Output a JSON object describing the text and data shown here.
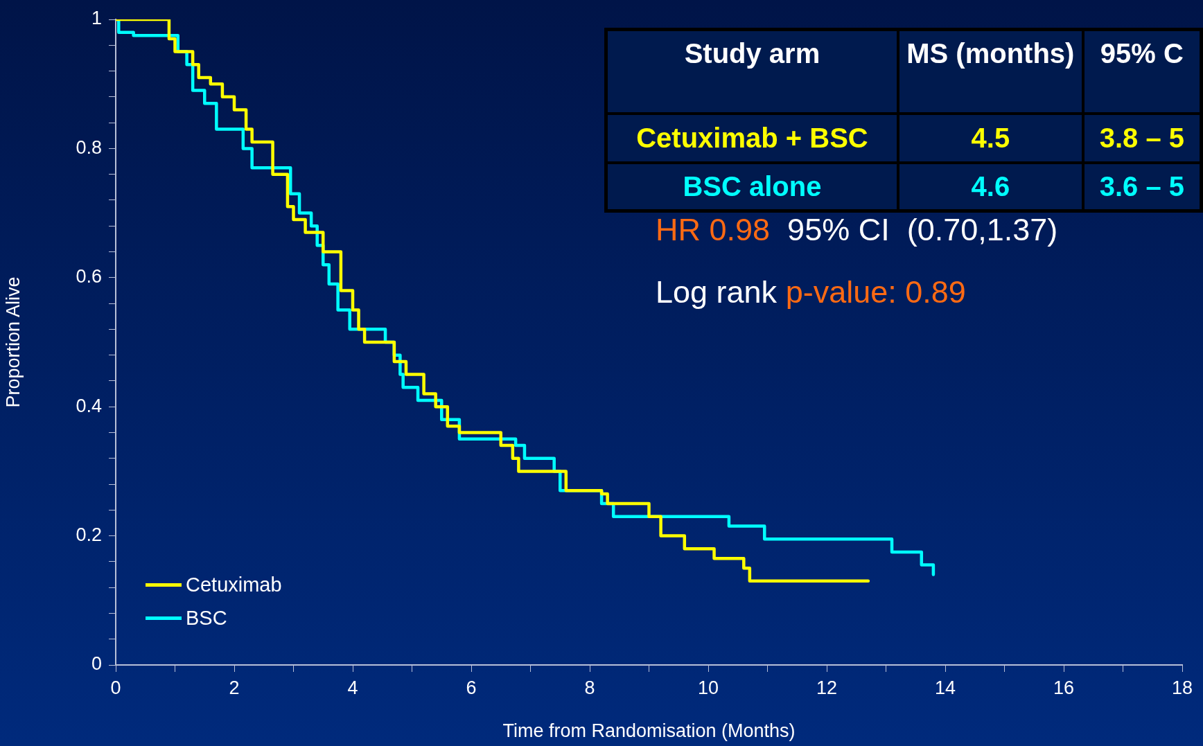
{
  "chart_data": {
    "type": "step",
    "xlabel": "Time from Randomisation (Months)",
    "ylabel": "Proportion Alive",
    "xlim": [
      0,
      18
    ],
    "xticks": [
      0,
      {
        "value": 1,
        "label": null
      },
      2,
      {
        "value": 3,
        "label": null
      },
      4,
      {
        "value": 5,
        "label": null
      },
      6,
      {
        "value": 7,
        "label": null
      },
      8,
      {
        "value": 9,
        "label": null
      },
      10,
      {
        "value": 11,
        "label": null
      },
      12,
      {
        "value": 13,
        "label": null
      },
      14,
      {
        "value": 15,
        "label": null
      },
      16,
      {
        "value": 17,
        "label": null
      },
      18
    ],
    "ylim": [
      0,
      1
    ],
    "yticks": [
      0,
      {
        "value": 0.04,
        "label": null
      },
      {
        "value": 0.08,
        "label": null
      },
      {
        "value": 0.12,
        "label": null
      },
      {
        "value": 0.16,
        "label": null
      },
      0.2,
      {
        "value": 0.24,
        "label": null
      },
      {
        "value": 0.28,
        "label": null
      },
      {
        "value": 0.32,
        "label": null
      },
      {
        "value": 0.36,
        "label": null
      },
      0.4,
      {
        "value": 0.44,
        "label": null
      },
      {
        "value": 0.48,
        "label": null
      },
      {
        "value": 0.52,
        "label": null
      },
      {
        "value": 0.56,
        "label": null
      },
      0.6,
      {
        "value": 0.64,
        "label": null
      },
      {
        "value": 0.68,
        "label": null
      },
      {
        "value": 0.72,
        "label": null
      },
      {
        "value": 0.76,
        "label": null
      },
      0.8,
      {
        "value": 0.84,
        "label": null
      },
      {
        "value": 0.88,
        "label": null
      },
      {
        "value": 0.92,
        "label": null
      },
      {
        "value": 0.96,
        "label": null
      },
      1
    ],
    "grid": false,
    "legend": "bottom left",
    "marker": "none",
    "line_style": "solid",
    "series": [
      {
        "name": "Cetuximab",
        "color": "#ffff00",
        "x": [
          0,
          0.9,
          1.0,
          1.3,
          1.4,
          1.6,
          1.8,
          2.0,
          2.2,
          2.3,
          2.65,
          2.9,
          3.0,
          3.2,
          3.5,
          3.8,
          4.0,
          4.1,
          4.2,
          4.7,
          4.9,
          5.2,
          5.4,
          5.6,
          5.8,
          6.5,
          6.7,
          6.8,
          7.6,
          8.2,
          8.3,
          9.0,
          9.2,
          9.6,
          10.1,
          10.6,
          10.7,
          12.7
        ],
        "values": [
          1,
          0.97,
          0.95,
          0.93,
          0.91,
          0.9,
          0.88,
          0.86,
          0.83,
          0.81,
          0.76,
          0.71,
          0.69,
          0.67,
          0.64,
          0.58,
          0.55,
          0.52,
          0.5,
          0.47,
          0.45,
          0.42,
          0.4,
          0.37,
          0.36,
          0.34,
          0.32,
          0.3,
          0.27,
          0.265,
          0.25,
          0.23,
          0.2,
          0.18,
          0.165,
          0.15,
          0.13,
          0.13
        ]
      },
      {
        "name": "BSC",
        "color": "#00ffff",
        "x": [
          0,
          0.05,
          0.3,
          1.05,
          1.2,
          1.3,
          1.5,
          1.7,
          2.15,
          2.3,
          2.95,
          3.1,
          3.3,
          3.4,
          3.5,
          3.6,
          3.75,
          3.95,
          4.55,
          4.7,
          4.8,
          4.85,
          5.1,
          5.5,
          5.8,
          6.75,
          6.9,
          7.4,
          7.5,
          8.2,
          8.4,
          10.35,
          10.95,
          13.1,
          13.6,
          13.8
        ],
        "values": [
          1,
          0.98,
          0.975,
          0.95,
          0.93,
          0.89,
          0.87,
          0.83,
          0.8,
          0.77,
          0.73,
          0.7,
          0.68,
          0.65,
          0.62,
          0.59,
          0.55,
          0.52,
          0.5,
          0.48,
          0.45,
          0.43,
          0.41,
          0.38,
          0.35,
          0.34,
          0.32,
          0.3,
          0.27,
          0.25,
          0.23,
          0.215,
          0.195,
          0.175,
          0.155,
          0.14
        ]
      }
    ],
    "annotations": [
      "Study arm",
      "MS (months)",
      "95% C",
      "Cetuximab + BSC",
      "4.5",
      "3.8 – 5",
      "BSC alone",
      "4.6",
      "3.6 – 5",
      "HR 0.98",
      "95% CI  (0.70,1.37)",
      "Log rank",
      "p-value: 0.89"
    ]
  }
}
